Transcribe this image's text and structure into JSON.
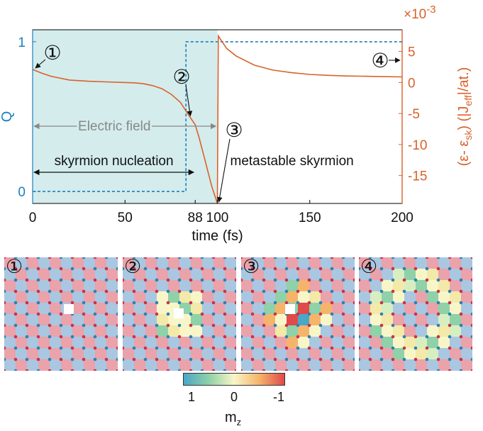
{
  "chart_data": {
    "type": "line",
    "xlabel": "time (fs)",
    "xlim": [
      0,
      200
    ],
    "x_ticks": [
      0,
      50,
      88,
      100,
      150,
      200
    ],
    "y_left": {
      "label": "Q",
      "ticks": [
        0,
        1
      ],
      "lim": [
        -0.08,
        1.08
      ],
      "color": "#1a7fc0"
    },
    "y_right": {
      "label_parts": [
        "(ε- ε",
        "sk",
        ") (|J",
        "eff",
        "|/at.)"
      ],
      "multiplier": "×10",
      "exponent": "-3",
      "ticks": [
        5,
        0,
        -5,
        -10,
        -15
      ],
      "lim": [
        -19.5,
        8.5
      ],
      "color": "#d9622b"
    },
    "shaded_region": {
      "x": [
        0,
        100
      ],
      "color": "#d4ecec"
    },
    "series": [
      {
        "axis": "left",
        "style": "dashed",
        "x": [
          0,
          83,
          83,
          200
        ],
        "y": [
          0,
          0,
          1,
          1
        ]
      },
      {
        "axis": "right",
        "style": "solid",
        "x": [
          0,
          5,
          10,
          20,
          30,
          40,
          50,
          55,
          60,
          65,
          70,
          75,
          80,
          85,
          88,
          90,
          93,
          95,
          97,
          100,
          100.5,
          105,
          110,
          120,
          130,
          140,
          150,
          160,
          170,
          180,
          190,
          200
        ],
        "y": [
          2.1,
          1.5,
          1.0,
          0.4,
          0.2,
          0.1,
          0.0,
          -0.05,
          -0.2,
          -0.5,
          -1.0,
          -1.9,
          -3.2,
          -5.5,
          -6.8,
          -8.8,
          -12.2,
          -14.5,
          -16.8,
          -19.5,
          7.5,
          5.5,
          4.3,
          2.8,
          2.0,
          1.6,
          1.3,
          1.15,
          1.05,
          1.0,
          0.95,
          0.9
        ]
      }
    ],
    "annotations": [
      {
        "text": "Electric field",
        "x_range": [
          0,
          100
        ]
      },
      {
        "text": "skyrmion nucleation",
        "x_range": [
          0,
          88
        ]
      },
      {
        "text": "metastable skyrmion"
      }
    ],
    "markers": [
      {
        "label": "①",
        "x": 0,
        "y": 2.1
      },
      {
        "label": "②",
        "x": 85,
        "y": -5.5
      },
      {
        "label": "③",
        "x": 100,
        "y": -19.5
      },
      {
        "label": "④",
        "x": 200,
        "y": 0.9
      }
    ]
  },
  "panels": [
    {
      "label": "①"
    },
    {
      "label": "②"
    },
    {
      "label": "③"
    },
    {
      "label": "④"
    }
  ],
  "colorbar": {
    "ticks": [
      "1",
      "0",
      "-1"
    ],
    "label": "m",
    "label_sub": "z",
    "colors": [
      "#4aa7c7",
      "#8fd1a8",
      "#f8f6c8",
      "#f6b46a",
      "#e04a4a"
    ]
  }
}
